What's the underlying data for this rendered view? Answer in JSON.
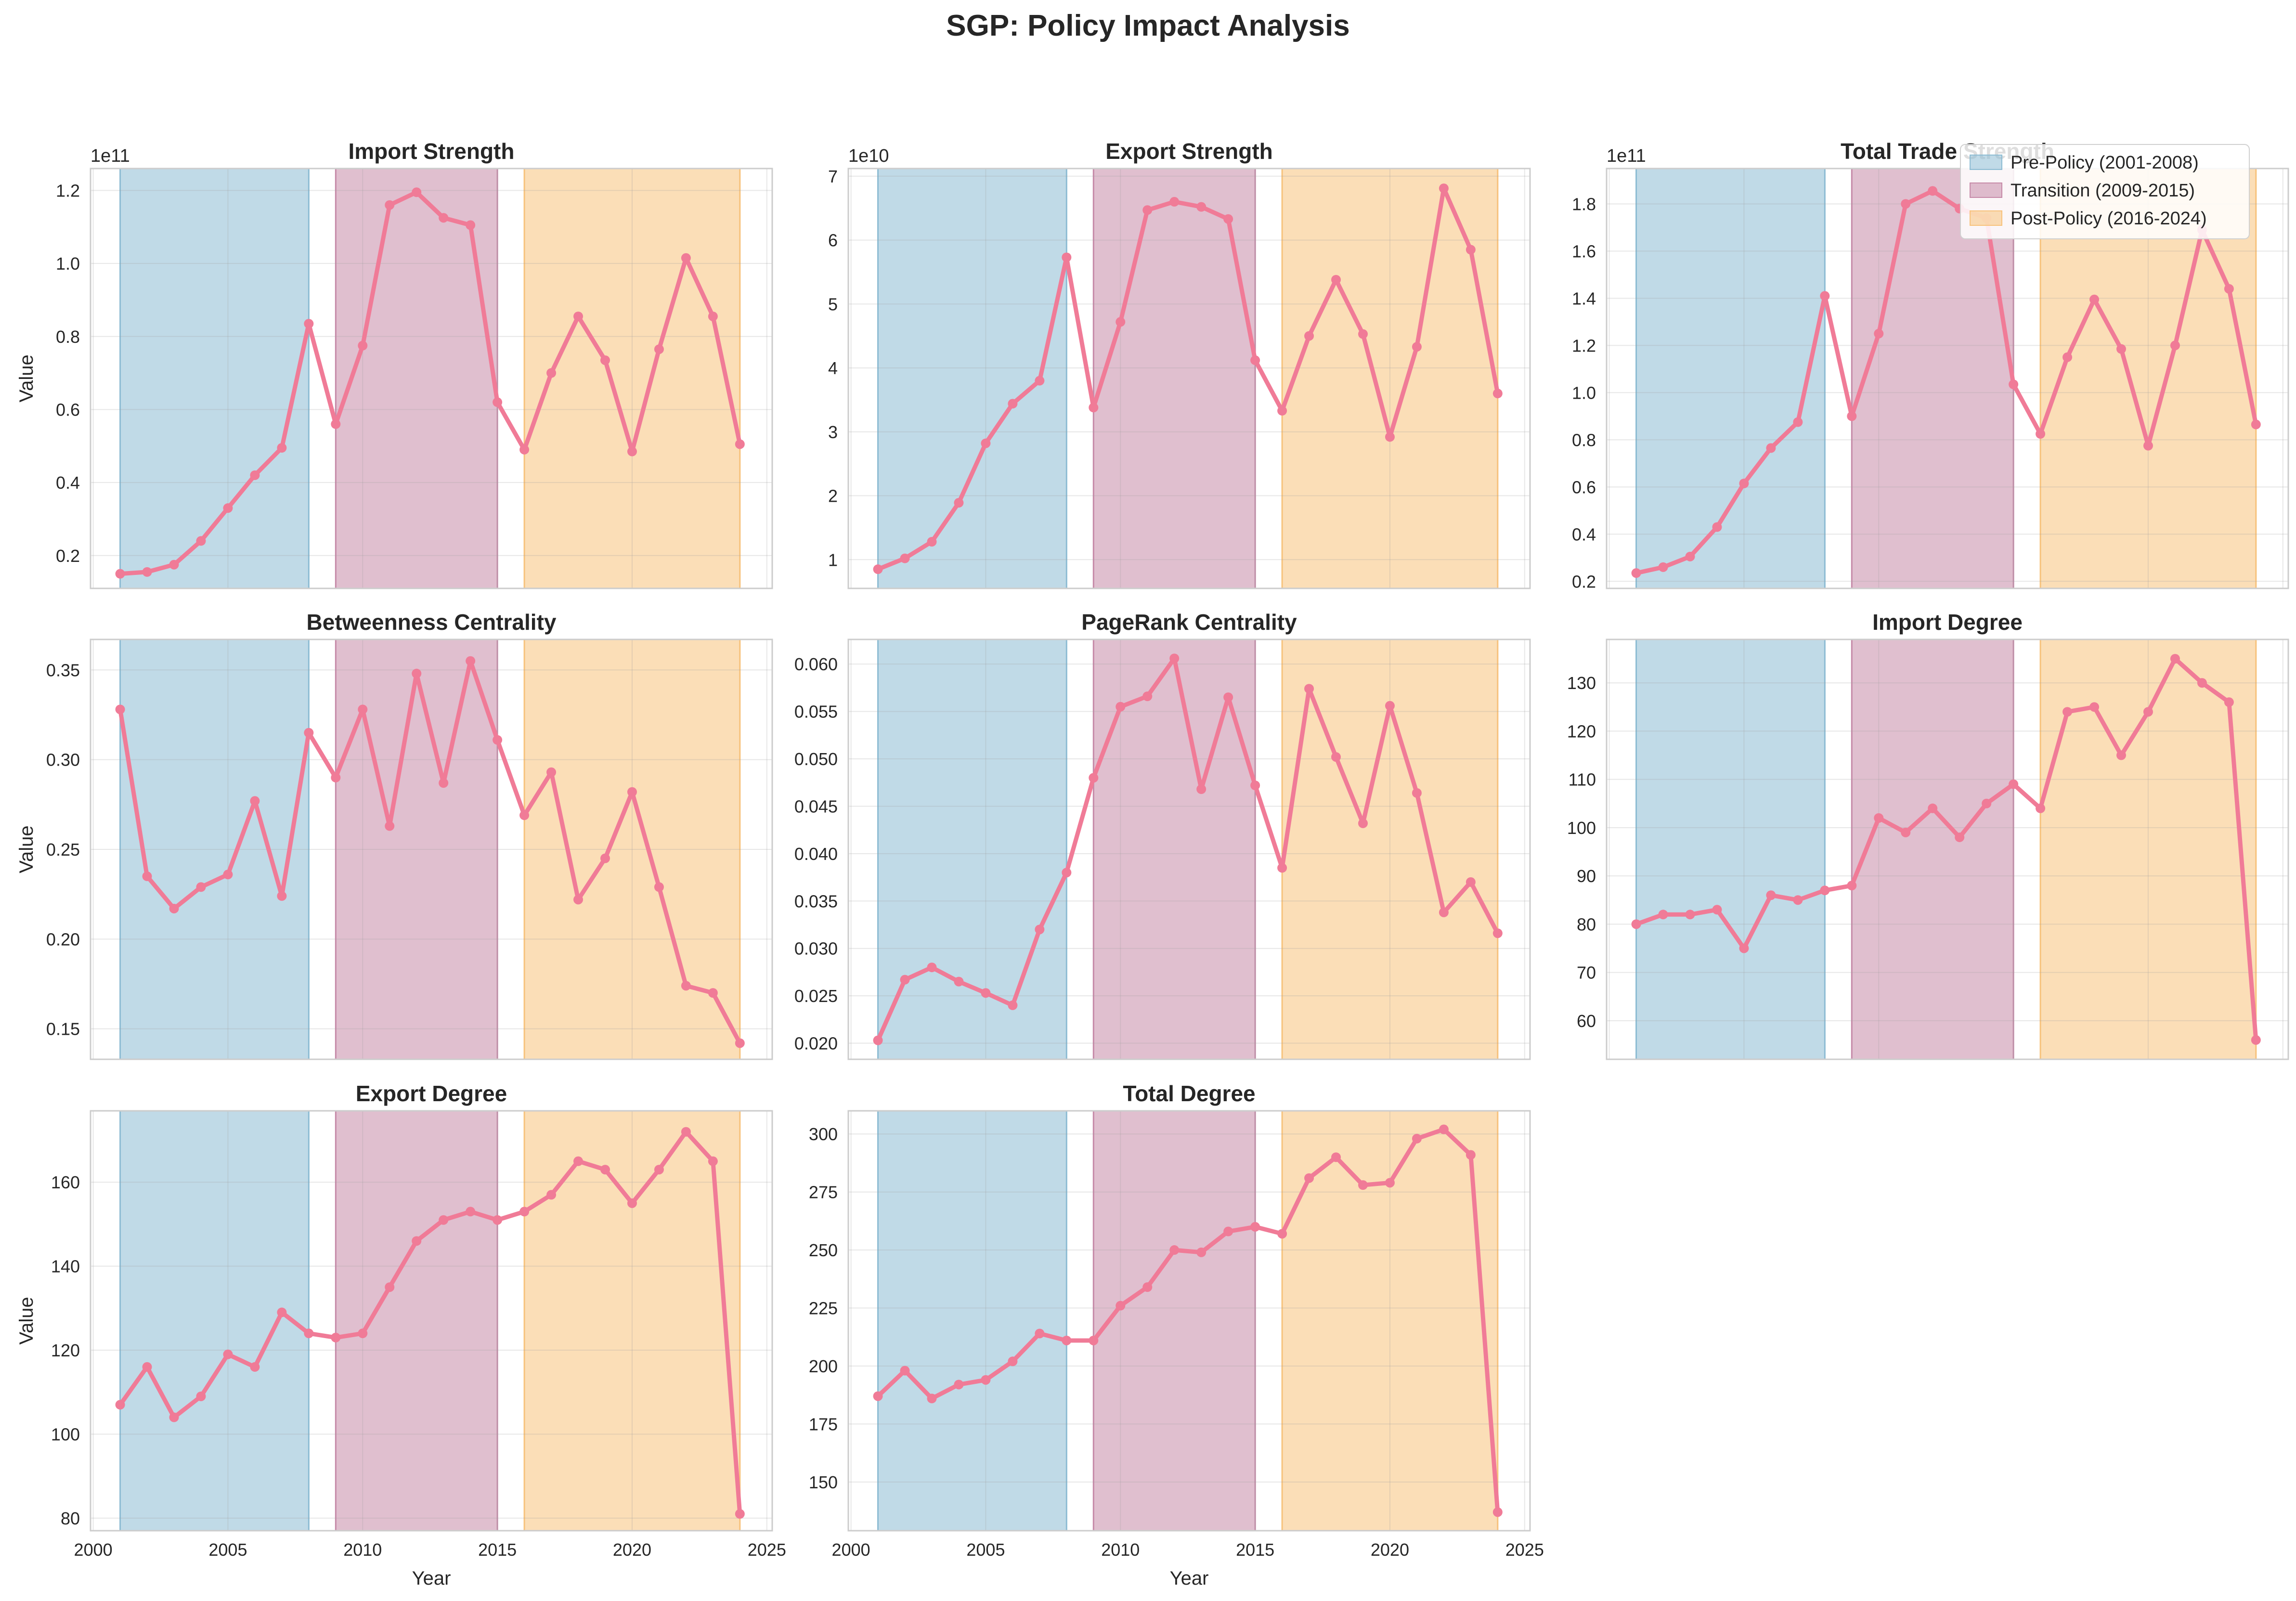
{
  "title": "SGP: Policy Impact Analysis",
  "colors": {
    "line": "#f07b97",
    "pre": "#8dbcd3",
    "transition": "#c68aa8",
    "post": "#f7c27c",
    "grid": "#e6e6e6",
    "spine": "#cccccc"
  },
  "legend": {
    "placement": "top-right",
    "entries": [
      {
        "key": "pre",
        "label": "Pre-Policy (2001-2008)"
      },
      {
        "key": "transition",
        "label": "Transition (2009-2015)"
      },
      {
        "key": "post",
        "label": "Post-Policy (2016-2024)"
      }
    ]
  },
  "chart_data": [
    {
      "type": "line",
      "title": "Import Strength",
      "ylabel": "Value",
      "xlabel": "",
      "offset_label": "1e11",
      "x": [
        2001,
        2002,
        2003,
        2004,
        2005,
        2006,
        2007,
        2008,
        2009,
        2010,
        2011,
        2012,
        2013,
        2014,
        2015,
        2016,
        2017,
        2018,
        2019,
        2020,
        2021,
        2022,
        2023,
        2024
      ],
      "y": [
        0.15,
        0.155,
        0.175,
        0.24,
        0.33,
        0.42,
        0.495,
        0.835,
        0.56,
        0.775,
        1.16,
        1.195,
        1.125,
        1.105,
        0.62,
        0.49,
        0.7,
        0.855,
        0.735,
        0.485,
        0.765,
        1.015,
        0.855,
        0.505
      ],
      "ylim": [
        0.11,
        1.26
      ],
      "yticks": [
        0.2,
        0.4,
        0.6,
        0.8,
        1.0,
        1.2
      ],
      "ytick_labels": [
        "0.2",
        "0.4",
        "0.6",
        "0.8",
        "1.0",
        "1.2"
      ],
      "xticks": [],
      "xtick_labels": [],
      "grid": true
    },
    {
      "type": "line",
      "title": "Export Strength",
      "ylabel": "",
      "xlabel": "",
      "offset_label": "1e10",
      "x": [
        2001,
        2002,
        2003,
        2004,
        2005,
        2006,
        2007,
        2008,
        2009,
        2010,
        2011,
        2012,
        2013,
        2014,
        2015,
        2016,
        2017,
        2018,
        2019,
        2020,
        2021,
        2022,
        2023,
        2024
      ],
      "y": [
        0.85,
        1.02,
        1.28,
        1.89,
        2.82,
        3.44,
        3.8,
        5.73,
        3.38,
        4.72,
        6.47,
        6.6,
        6.52,
        6.33,
        4.12,
        3.33,
        4.5,
        5.38,
        4.53,
        2.92,
        4.33,
        6.81,
        5.85,
        3.6
      ],
      "ylim": [
        0.55,
        7.12
      ],
      "yticks": [
        1,
        2,
        3,
        4,
        5,
        6,
        7
      ],
      "ytick_labels": [
        "1",
        "2",
        "3",
        "4",
        "5",
        "6",
        "7"
      ],
      "xticks": [],
      "xtick_labels": [],
      "grid": true
    },
    {
      "type": "line",
      "title": "Total Trade Strength",
      "ylabel": "",
      "xlabel": "",
      "offset_label": "1e11",
      "x": [
        2001,
        2002,
        2003,
        2004,
        2005,
        2006,
        2007,
        2008,
        2009,
        2010,
        2011,
        2012,
        2013,
        2014,
        2015,
        2016,
        2017,
        2018,
        2019,
        2020,
        2021,
        2022,
        2023,
        2024
      ],
      "y": [
        0.235,
        0.26,
        0.305,
        0.43,
        0.615,
        0.765,
        0.875,
        1.41,
        0.9,
        1.25,
        1.8,
        1.855,
        1.78,
        1.74,
        1.035,
        0.825,
        1.15,
        1.395,
        1.185,
        0.775,
        1.2,
        1.69,
        1.44,
        0.865
      ],
      "ylim": [
        0.17,
        1.95
      ],
      "yticks": [
        0.2,
        0.4,
        0.6,
        0.8,
        1.0,
        1.2,
        1.4,
        1.6,
        1.8
      ],
      "ytick_labels": [
        "0.2",
        "0.4",
        "0.6",
        "0.8",
        "1.0",
        "1.2",
        "1.4",
        "1.6",
        "1.8"
      ],
      "xticks": [],
      "xtick_labels": [],
      "grid": true
    },
    {
      "type": "line",
      "title": "Betweenness Centrality",
      "ylabel": "Value",
      "xlabel": "",
      "offset_label": "",
      "x": [
        2001,
        2002,
        2003,
        2004,
        2005,
        2006,
        2007,
        2008,
        2009,
        2010,
        2011,
        2012,
        2013,
        2014,
        2015,
        2016,
        2017,
        2018,
        2019,
        2020,
        2021,
        2022,
        2023,
        2024
      ],
      "y": [
        0.328,
        0.235,
        0.217,
        0.229,
        0.236,
        0.277,
        0.224,
        0.315,
        0.29,
        0.328,
        0.263,
        0.348,
        0.287,
        0.355,
        0.311,
        0.269,
        0.293,
        0.222,
        0.245,
        0.282,
        0.229,
        0.174,
        0.17,
        0.142
      ],
      "ylim": [
        0.133,
        0.367
      ],
      "yticks": [
        0.15,
        0.2,
        0.25,
        0.3,
        0.35
      ],
      "ytick_labels": [
        "0.15",
        "0.20",
        "0.25",
        "0.30",
        "0.35"
      ],
      "xticks": [],
      "xtick_labels": [],
      "grid": true
    },
    {
      "type": "line",
      "title": "PageRank Centrality",
      "ylabel": "",
      "xlabel": "",
      "offset_label": "",
      "x": [
        2001,
        2002,
        2003,
        2004,
        2005,
        2006,
        2007,
        2008,
        2009,
        2010,
        2011,
        2012,
        2013,
        2014,
        2015,
        2016,
        2017,
        2018,
        2019,
        2020,
        2021,
        2022,
        2023,
        2024
      ],
      "y": [
        0.0203,
        0.0267,
        0.028,
        0.0265,
        0.0253,
        0.024,
        0.032,
        0.038,
        0.048,
        0.0555,
        0.0566,
        0.0606,
        0.0468,
        0.0565,
        0.0472,
        0.0385,
        0.0574,
        0.0502,
        0.0432,
        0.0556,
        0.0464,
        0.0338,
        0.037,
        0.0316
      ],
      "ylim": [
        0.0183,
        0.0626
      ],
      "yticks": [
        0.02,
        0.025,
        0.03,
        0.035,
        0.04,
        0.045,
        0.05,
        0.055,
        0.06
      ],
      "ytick_labels": [
        "0.020",
        "0.025",
        "0.030",
        "0.035",
        "0.040",
        "0.045",
        "0.050",
        "0.055",
        "0.060"
      ],
      "xticks": [],
      "xtick_labels": [],
      "grid": true
    },
    {
      "type": "line",
      "title": "Import Degree",
      "ylabel": "",
      "xlabel": "",
      "offset_label": "",
      "x": [
        2001,
        2002,
        2003,
        2004,
        2005,
        2006,
        2007,
        2008,
        2009,
        2010,
        2011,
        2012,
        2013,
        2014,
        2015,
        2016,
        2017,
        2018,
        2019,
        2020,
        2021,
        2022,
        2023,
        2024
      ],
      "y": [
        80,
        82,
        82,
        83,
        75,
        86,
        85,
        87,
        88,
        102,
        99,
        104,
        98,
        105,
        109,
        104,
        124,
        125,
        115,
        124,
        135,
        130,
        126,
        56
      ],
      "ylim": [
        52,
        139
      ],
      "yticks": [
        60,
        70,
        80,
        90,
        100,
        110,
        120,
        130
      ],
      "ytick_labels": [
        "60",
        "70",
        "80",
        "90",
        "100",
        "110",
        "120",
        "130"
      ],
      "xticks": [],
      "xtick_labels": [],
      "grid": true
    },
    {
      "type": "line",
      "title": "Export Degree",
      "ylabel": "Value",
      "xlabel": "Year",
      "offset_label": "",
      "x": [
        2001,
        2002,
        2003,
        2004,
        2005,
        2006,
        2007,
        2008,
        2009,
        2010,
        2011,
        2012,
        2013,
        2014,
        2015,
        2016,
        2017,
        2018,
        2019,
        2020,
        2021,
        2022,
        2023,
        2024
      ],
      "y": [
        107,
        116,
        104,
        109,
        119,
        116,
        129,
        124,
        123,
        124,
        135,
        146,
        151,
        153,
        151,
        153,
        157,
        165,
        163,
        155,
        163,
        172,
        165,
        81
      ],
      "ylim": [
        77,
        177
      ],
      "yticks": [
        80,
        100,
        120,
        140,
        160
      ],
      "ytick_labels": [
        "80",
        "100",
        "120",
        "140",
        "160"
      ],
      "xticks": [
        2000,
        2005,
        2010,
        2015,
        2020,
        2025
      ],
      "xtick_labels": [
        "2000",
        "2005",
        "2010",
        "2015",
        "2020",
        "2025"
      ],
      "grid": true
    },
    {
      "type": "line",
      "title": "Total Degree",
      "ylabel": "",
      "xlabel": "Year",
      "offset_label": "",
      "x": [
        2001,
        2002,
        2003,
        2004,
        2005,
        2006,
        2007,
        2008,
        2009,
        2010,
        2011,
        2012,
        2013,
        2014,
        2015,
        2016,
        2017,
        2018,
        2019,
        2020,
        2021,
        2022,
        2023,
        2024
      ],
      "y": [
        187,
        198,
        186,
        192,
        194,
        202,
        214,
        211,
        211,
        226,
        234,
        250,
        249,
        258,
        260,
        257,
        281,
        290,
        278,
        279,
        298,
        302,
        291,
        137
      ],
      "ylim": [
        129,
        310
      ],
      "yticks": [
        150,
        175,
        200,
        225,
        250,
        275,
        300
      ],
      "ytick_labels": [
        "150",
        "175",
        "200",
        "225",
        "250",
        "275",
        "300"
      ],
      "xticks": [
        2000,
        2005,
        2010,
        2015,
        2020,
        2025
      ],
      "xtick_labels": [
        "2000",
        "2005",
        "2010",
        "2015",
        "2020",
        "2025"
      ],
      "grid": true
    }
  ]
}
